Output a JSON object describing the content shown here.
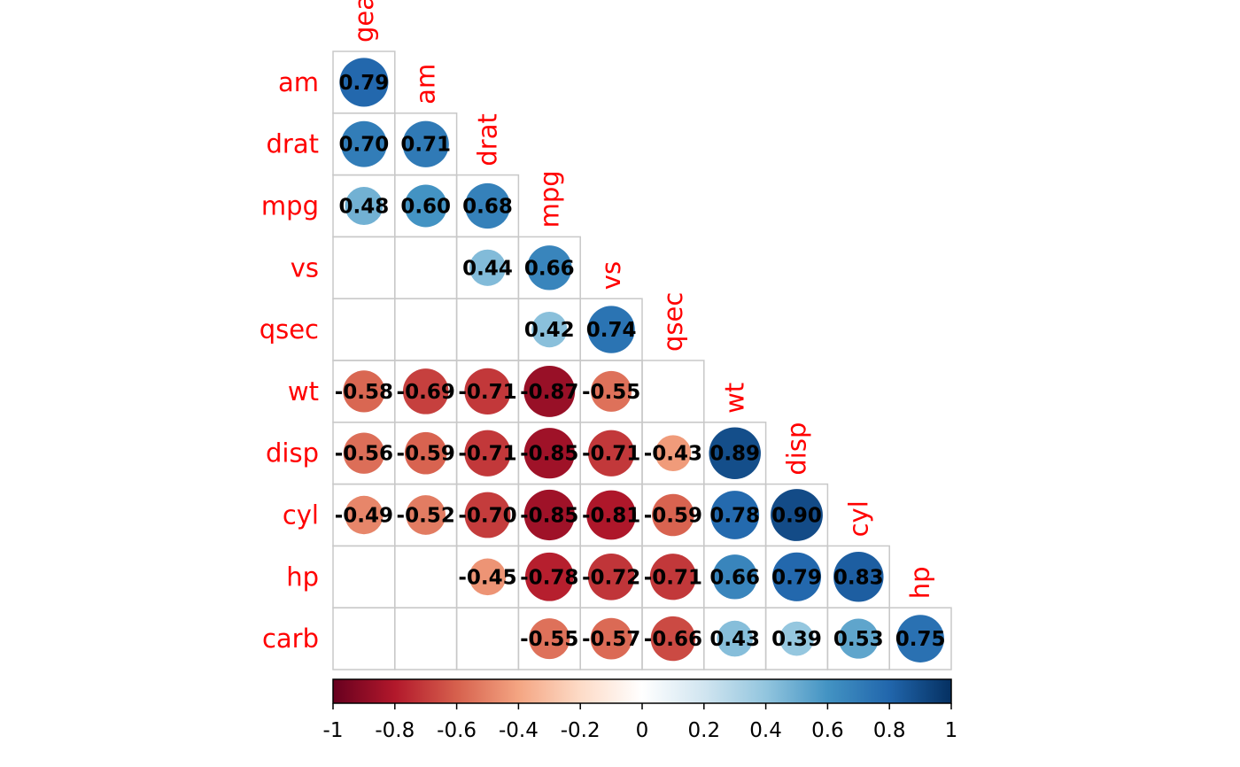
{
  "chart_data": {
    "type": "heatmap",
    "subtype": "correlation-circles-lower-triangle",
    "variables": [
      "gear",
      "am",
      "drat",
      "mpg",
      "vs",
      "qsec",
      "wt",
      "disp",
      "cyl",
      "hp",
      "carb"
    ],
    "row_labels": [
      "am",
      "drat",
      "mpg",
      "vs",
      "qsec",
      "wt",
      "disp",
      "cyl",
      "hp",
      "carb"
    ],
    "col_labels": [
      "gear",
      "am",
      "drat",
      "mpg",
      "vs",
      "qsec",
      "wt",
      "disp",
      "cyl",
      "hp"
    ],
    "cells": [
      {
        "row": "am",
        "col": "gear",
        "value": 0.79,
        "label": "0.79"
      },
      {
        "row": "drat",
        "col": "gear",
        "value": 0.7,
        "label": "0.70"
      },
      {
        "row": "drat",
        "col": "am",
        "value": 0.71,
        "label": "0.71"
      },
      {
        "row": "mpg",
        "col": "gear",
        "value": 0.48,
        "label": "0.48"
      },
      {
        "row": "mpg",
        "col": "am",
        "value": 0.6,
        "label": "0.60"
      },
      {
        "row": "mpg",
        "col": "drat",
        "value": 0.68,
        "label": "0.68"
      },
      {
        "row": "vs",
        "col": "drat",
        "value": 0.44,
        "label": "0.44"
      },
      {
        "row": "vs",
        "col": "mpg",
        "value": 0.66,
        "label": "0.66"
      },
      {
        "row": "qsec",
        "col": "mpg",
        "value": 0.42,
        "label": "0.42"
      },
      {
        "row": "qsec",
        "col": "vs",
        "value": 0.74,
        "label": "0.74"
      },
      {
        "row": "wt",
        "col": "gear",
        "value": -0.58,
        "label": "-0.58"
      },
      {
        "row": "wt",
        "col": "am",
        "value": -0.69,
        "label": "-0.69"
      },
      {
        "row": "wt",
        "col": "drat",
        "value": -0.71,
        "label": "-0.71"
      },
      {
        "row": "wt",
        "col": "mpg",
        "value": -0.87,
        "label": "-0.87"
      },
      {
        "row": "wt",
        "col": "vs",
        "value": -0.55,
        "label": "-0.55"
      },
      {
        "row": "disp",
        "col": "gear",
        "value": -0.56,
        "label": "-0.56"
      },
      {
        "row": "disp",
        "col": "am",
        "value": -0.59,
        "label": "-0.59"
      },
      {
        "row": "disp",
        "col": "drat",
        "value": -0.71,
        "label": "-0.71"
      },
      {
        "row": "disp",
        "col": "mpg",
        "value": -0.85,
        "label": "-0.85"
      },
      {
        "row": "disp",
        "col": "vs",
        "value": -0.71,
        "label": "-0.71"
      },
      {
        "row": "disp",
        "col": "qsec",
        "value": -0.43,
        "label": "-0.43"
      },
      {
        "row": "disp",
        "col": "wt",
        "value": 0.89,
        "label": "0.89"
      },
      {
        "row": "cyl",
        "col": "gear",
        "value": -0.49,
        "label": "-0.49"
      },
      {
        "row": "cyl",
        "col": "am",
        "value": -0.52,
        "label": "-0.52"
      },
      {
        "row": "cyl",
        "col": "drat",
        "value": -0.7,
        "label": "-0.70"
      },
      {
        "row": "cyl",
        "col": "mpg",
        "value": -0.85,
        "label": "-0.85"
      },
      {
        "row": "cyl",
        "col": "vs",
        "value": -0.81,
        "label": "-0.81"
      },
      {
        "row": "cyl",
        "col": "qsec",
        "value": -0.59,
        "label": "-0.59"
      },
      {
        "row": "cyl",
        "col": "wt",
        "value": 0.78,
        "label": "0.78"
      },
      {
        "row": "cyl",
        "col": "disp",
        "value": 0.9,
        "label": "0.90"
      },
      {
        "row": "hp",
        "col": "drat",
        "value": -0.45,
        "label": "-0.45"
      },
      {
        "row": "hp",
        "col": "mpg",
        "value": -0.78,
        "label": "-0.78"
      },
      {
        "row": "hp",
        "col": "vs",
        "value": -0.72,
        "label": "-0.72"
      },
      {
        "row": "hp",
        "col": "qsec",
        "value": -0.71,
        "label": "-0.71"
      },
      {
        "row": "hp",
        "col": "wt",
        "value": 0.66,
        "label": "0.66"
      },
      {
        "row": "hp",
        "col": "disp",
        "value": 0.79,
        "label": "0.79"
      },
      {
        "row": "hp",
        "col": "cyl",
        "value": 0.83,
        "label": "0.83"
      },
      {
        "row": "carb",
        "col": "mpg",
        "value": -0.55,
        "label": "-0.55"
      },
      {
        "row": "carb",
        "col": "vs",
        "value": -0.57,
        "label": "-0.57"
      },
      {
        "row": "carb",
        "col": "qsec",
        "value": -0.66,
        "label": "-0.66"
      },
      {
        "row": "carb",
        "col": "wt",
        "value": 0.43,
        "label": "0.43"
      },
      {
        "row": "carb",
        "col": "disp",
        "value": 0.39,
        "label": "0.39"
      },
      {
        "row": "carb",
        "col": "cyl",
        "value": 0.53,
        "label": "0.53"
      },
      {
        "row": "carb",
        "col": "hp",
        "value": 0.75,
        "label": "0.75"
      }
    ],
    "colorbar": {
      "range": [
        -1,
        1
      ],
      "ticks": [
        -1,
        -0.8,
        -0.6,
        -0.4,
        -0.2,
        0,
        0.2,
        0.4,
        0.6,
        0.8,
        1
      ],
      "tick_labels": [
        "-1",
        "-0.8",
        "-0.6",
        "-0.4",
        "-0.2",
        "0",
        "0.2",
        "0.4",
        "0.6",
        "0.8",
        "1"
      ],
      "palette": [
        "#67001F",
        "#B2182B",
        "#D6604D",
        "#F4A582",
        "#FDDBC7",
        "#FFFFFF",
        "#D1E5F0",
        "#92C5DE",
        "#4393C3",
        "#2166AC",
        "#053061"
      ]
    },
    "colors": {
      "label_color": "#ff0000",
      "grid_color": "#c8c8c8",
      "value_text_color": "#000000"
    },
    "grid": true,
    "legend_position": "bottom"
  }
}
